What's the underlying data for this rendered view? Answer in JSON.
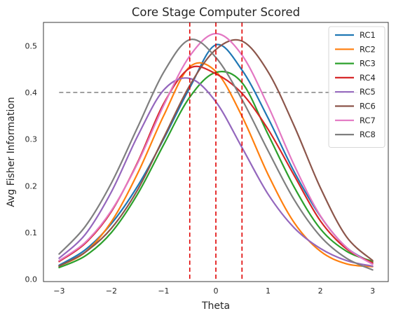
{
  "chart_data": {
    "type": "line",
    "title": "Core Stage Computer Scored",
    "xlabel": "Theta",
    "ylabel": "Avg Fisher Information",
    "xlim": [
      -3.3,
      3.3
    ],
    "ylim": [
      -0.005,
      0.55
    ],
    "xticks": [
      -3,
      -2,
      -1,
      0,
      1,
      2,
      3
    ],
    "yticks": [
      0.0,
      0.1,
      0.2,
      0.3,
      0.4,
      0.5
    ],
    "xtick_labels": [
      "−3",
      "−2",
      "−1",
      "0",
      "1",
      "2",
      "3"
    ],
    "ytick_labels": [
      "0.0",
      "0.1",
      "0.2",
      "0.3",
      "0.4",
      "0.5"
    ],
    "grid": false,
    "legend_position": "top-right",
    "x": [
      -3,
      -2.5,
      -2,
      -1.5,
      -1,
      -0.5,
      0,
      0.5,
      1,
      1.5,
      2,
      2.5,
      3
    ],
    "series": [
      {
        "name": "RC1",
        "color": "#1f77b4",
        "values": [
          0.03,
          0.063,
          0.119,
          0.199,
          0.3,
          0.41,
          0.502,
          0.448,
          0.345,
          0.23,
          0.135,
          0.068,
          0.035
        ]
      },
      {
        "name": "RC2",
        "color": "#ff7f0e",
        "values": [
          0.028,
          0.058,
          0.123,
          0.226,
          0.35,
          0.455,
          0.445,
          0.349,
          0.224,
          0.121,
          0.06,
          0.033,
          0.027
        ]
      },
      {
        "name": "RC3",
        "color": "#2ca02c",
        "values": [
          0.025,
          0.05,
          0.1,
          0.182,
          0.288,
          0.39,
          0.443,
          0.421,
          0.31,
          0.197,
          0.108,
          0.06,
          0.038
        ]
      },
      {
        "name": "RC4",
        "color": "#d62728",
        "values": [
          0.038,
          0.077,
          0.145,
          0.25,
          0.376,
          0.452,
          0.44,
          0.398,
          0.321,
          0.222,
          0.125,
          0.065,
          0.035
        ]
      },
      {
        "name": "RC5",
        "color": "#9467bd",
        "values": [
          0.045,
          0.096,
          0.187,
          0.306,
          0.405,
          0.43,
          0.38,
          0.282,
          0.182,
          0.11,
          0.066,
          0.04,
          0.028
        ]
      },
      {
        "name": "RC6",
        "color": "#8c564b",
        "values": [
          0.028,
          0.058,
          0.109,
          0.191,
          0.303,
          0.415,
          0.492,
          0.51,
          0.444,
          0.328,
          0.196,
          0.091,
          0.04
        ]
      },
      {
        "name": "RC7",
        "color": "#e377c2",
        "values": [
          0.04,
          0.079,
          0.147,
          0.248,
          0.372,
          0.478,
          0.526,
          0.48,
          0.371,
          0.244,
          0.136,
          0.068,
          0.032
        ]
      },
      {
        "name": "RC8",
        "color": "#7f7f7f",
        "values": [
          0.054,
          0.113,
          0.206,
          0.325,
          0.443,
          0.513,
          0.475,
          0.385,
          0.275,
          0.17,
          0.092,
          0.045,
          0.02
        ]
      }
    ],
    "reference_lines": {
      "horizontal": {
        "y": 0.4,
        "x_from": -3,
        "x_to": 3,
        "color": "#808080",
        "style": "dashed"
      },
      "vertical": {
        "x": [
          -0.5,
          0,
          0.5
        ],
        "color": "#e00000",
        "style": "dashed"
      }
    }
  }
}
